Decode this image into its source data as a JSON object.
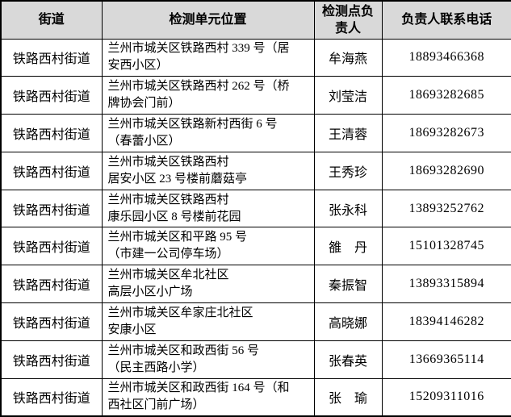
{
  "theme": {
    "header-bg": "#d9d9d9",
    "border-color": "#000000",
    "text-color": "#000000",
    "page-bg": "#ffffff"
  },
  "table": {
    "headers": {
      "street": "街道",
      "location": "检测单元位置",
      "manager": "检测点负\n责人",
      "phone": "负责人联系电话"
    },
    "rows": [
      {
        "street": "铁路西村街道",
        "location": "兰州市城关区铁路西村 339 号（居\n安西小区）",
        "manager": "牟海燕",
        "phone": "18893466368"
      },
      {
        "street": "铁路西村街道",
        "location": "兰州市城关区铁路西村 262 号（桥\n牌协会门前）",
        "manager": "刘莹洁",
        "phone": "18693282685"
      },
      {
        "street": "铁路西村街道",
        "location": "兰州市城关区铁路新村西街 6 号\n（春蕾小区）",
        "manager": "王清蓉",
        "phone": "18693282673"
      },
      {
        "street": "铁路西村街道",
        "location": "兰州市城关区铁路西村\n居安小区 23 号楼前蘑菇亭",
        "manager": "王秀珍",
        "phone": "18693282690"
      },
      {
        "street": "铁路西村街道",
        "location": "兰州市城关区铁路西村\n康乐园小区 8 号楼前花园",
        "manager": "张永科",
        "phone": "13893252762"
      },
      {
        "street": "铁路西村街道",
        "location": "兰州市城关区和平路 95 号\n（市建一公司停车场）",
        "manager": "雒　丹",
        "phone": "15101328745"
      },
      {
        "street": "铁路西村街道",
        "location": "兰州市城关区牟北社区\n高层小区小广场",
        "manager": "秦振智",
        "phone": "13893315894"
      },
      {
        "street": "铁路西村街道",
        "location": "兰州市城关区牟家庄北社区\n安康小区",
        "manager": "高晓娜",
        "phone": "18394146282"
      },
      {
        "street": "铁路西村街道",
        "location": "兰州市城关区和政西街 56 号\n（民主西路小学）",
        "manager": "张春英",
        "phone": "13669365114"
      },
      {
        "street": "铁路西村街道",
        "location": "兰州市城关区和政西街 164 号（和\n西社区门前广场）",
        "manager": "张　瑜",
        "phone": "15209311016"
      }
    ]
  }
}
